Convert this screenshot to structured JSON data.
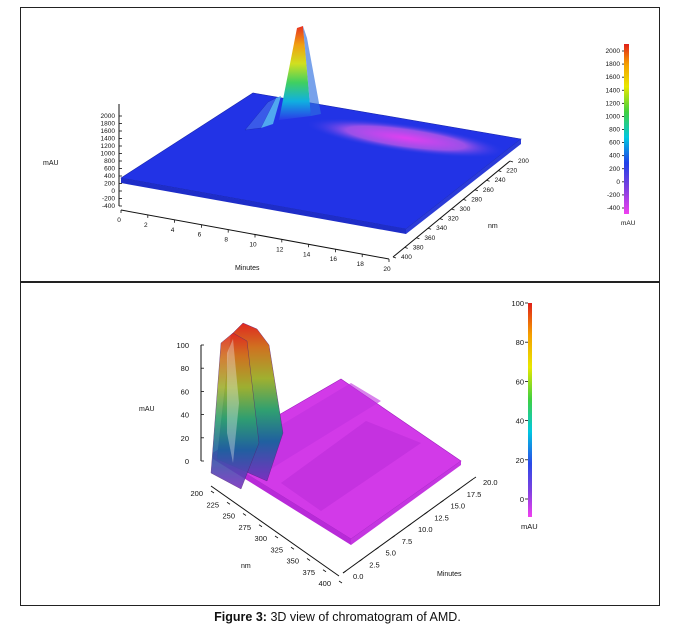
{
  "caption": {
    "label": "Figure 3:",
    "text": "3D view of chromatogram of AMD."
  },
  "chart_data": [
    {
      "type": "area",
      "panel": "top",
      "view": "3d-surface",
      "zlabel": "mAU",
      "xlabel": "Minutes",
      "ylabel": "nm",
      "z_ticks": [
        "2000",
        "1800",
        "1600",
        "1400",
        "1200",
        "1000",
        "800",
        "600",
        "400",
        "200",
        "0",
        "-200",
        "-400"
      ],
      "x_ticks": [
        "0",
        "2",
        "4",
        "6",
        "8",
        "10",
        "12",
        "14",
        "16",
        "18",
        "20"
      ],
      "y_ticks": [
        "200",
        "220",
        "240",
        "260",
        "280",
        "300",
        "320",
        "340",
        "360",
        "380",
        "400"
      ],
      "colorbar_label": "mAU",
      "colorbar_ticks": [
        "2000",
        "1800",
        "1600",
        "1400",
        "1200",
        "1000",
        "800",
        "600",
        "400",
        "200",
        "0",
        "-200",
        "-400"
      ],
      "zlim": [
        -400,
        2000
      ],
      "xlim": [
        0,
        20
      ],
      "ylim": [
        200,
        400
      ],
      "peak": {
        "minutes": 2.6,
        "nm": 220,
        "mAU": 2000
      }
    },
    {
      "type": "area",
      "panel": "bottom",
      "view": "3d-surface",
      "zlabel": "mAU",
      "xlabel": "Minutes",
      "ylabel": "nm",
      "z_ticks": [
        "100",
        "80",
        "60",
        "40",
        "20",
        "0"
      ],
      "x_ticks": [
        "0.0",
        "2.5",
        "5.0",
        "7.5",
        "10.0",
        "12.5",
        "15.0",
        "17.5",
        "20.0"
      ],
      "y_ticks": [
        "200",
        "225",
        "250",
        "275",
        "300",
        "325",
        "350",
        "375",
        "400"
      ],
      "colorbar_label": "mAU",
      "colorbar_ticks": [
        "100",
        "80",
        "60",
        "40",
        "20",
        "0"
      ],
      "zlim": [
        0,
        100
      ],
      "xlim": [
        0,
        20
      ],
      "ylim": [
        200,
        400
      ],
      "peak": {
        "minutes": 2.6,
        "nm": 215,
        "mAU": 100
      }
    }
  ]
}
